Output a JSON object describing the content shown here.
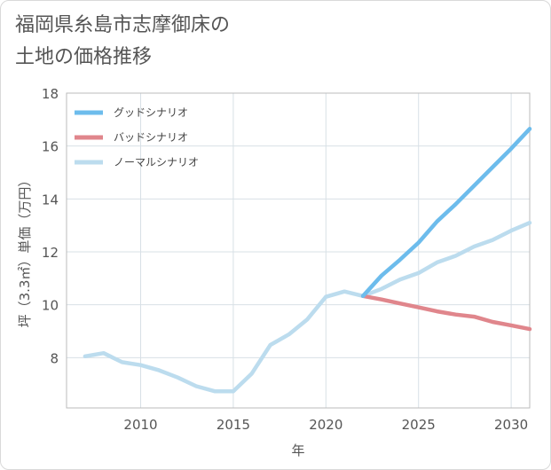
{
  "title": {
    "line1": "福岡県糸島市志摩御床の",
    "line2": "土地の価格推移"
  },
  "chart_data": {
    "type": "line",
    "xlabel": "年",
    "ylabel": "坪（3.3㎡）単価（万円）",
    "xlim": [
      2006,
      2031
    ],
    "ylim": [
      6.1,
      18
    ],
    "xticks": [
      2010,
      2015,
      2020,
      2025,
      2030
    ],
    "yticks": [
      8,
      10,
      12,
      14,
      16,
      18
    ],
    "grid": true,
    "legend_position": "top-left",
    "series": [
      {
        "name": "グッドシナリオ",
        "color": "#6dbcec",
        "x": [
          2022,
          2023,
          2024,
          2025,
          2026,
          2027,
          2028,
          2029,
          2030,
          2031
        ],
        "y": [
          10.33,
          11.1,
          11.7,
          12.35,
          13.15,
          13.8,
          14.5,
          15.2,
          15.9,
          16.65
        ]
      },
      {
        "name": "バッドシナリオ",
        "color": "#e0868c",
        "x": [
          2022,
          2023,
          2024,
          2025,
          2026,
          2027,
          2028,
          2029,
          2030,
          2031
        ],
        "y": [
          10.33,
          10.2,
          10.05,
          9.9,
          9.75,
          9.63,
          9.55,
          9.35,
          9.22,
          9.08
        ]
      },
      {
        "name": "ノーマルシナリオ",
        "color": "#bcdcee",
        "x": [
          2007,
          2008,
          2009,
          2010,
          2011,
          2012,
          2013,
          2014,
          2015,
          2016,
          2017,
          2018,
          2019,
          2020,
          2021,
          2022,
          2023,
          2024,
          2025,
          2026,
          2027,
          2028,
          2029,
          2030,
          2031
        ],
        "y": [
          8.05,
          8.17,
          7.83,
          7.72,
          7.52,
          7.25,
          6.92,
          6.73,
          6.73,
          7.4,
          8.48,
          8.88,
          9.45,
          10.3,
          10.5,
          10.33,
          10.6,
          10.95,
          11.2,
          11.6,
          11.85,
          12.2,
          12.45,
          12.8,
          13.1
        ]
      }
    ]
  }
}
